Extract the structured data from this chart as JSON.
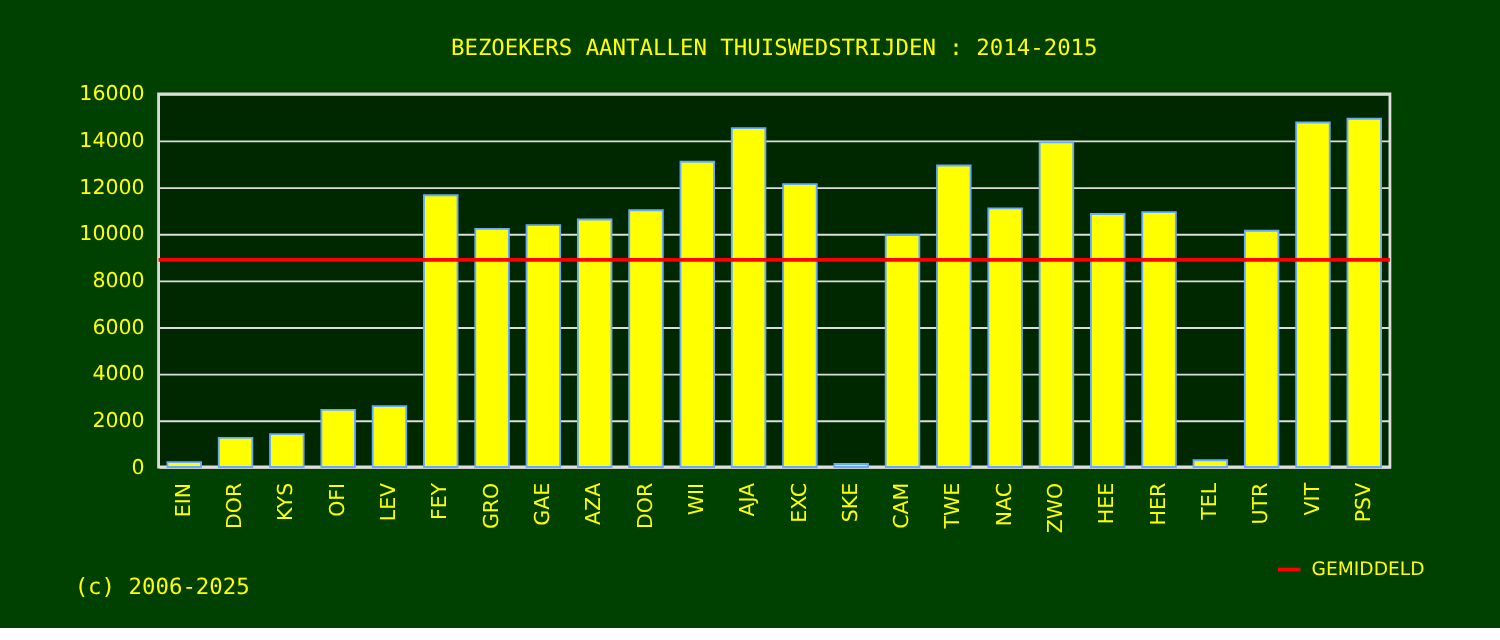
{
  "chart_data": {
    "type": "bar",
    "title": "BEZOEKERS AANTALLEN THUISWEDSTRIJDEN : 2014-2015",
    "categories": [
      "EIN",
      "DOR",
      "KYS",
      "OFI",
      "LEV",
      "FEY",
      "GRO",
      "GAE",
      "AZA",
      "DOR",
      "WII",
      "AJA",
      "EXC",
      "SKE",
      "CAM",
      "TWE",
      "NAC",
      "ZWO",
      "HEE",
      "HER",
      "TEL",
      "UTR",
      "VIT",
      "PSV"
    ],
    "values": [
      210,
      1250,
      1410,
      2450,
      2610,
      11650,
      10210,
      10370,
      10610,
      11010,
      13090,
      14530,
      12130,
      130,
      9950,
      12930,
      11090,
      13920,
      10850,
      10930,
      290,
      10130,
      14770,
      14930
    ],
    "color": "#ffff00",
    "ylim": [
      0,
      16000
    ],
    "yticks": [
      0,
      2000,
      4000,
      6000,
      8000,
      10000,
      12000,
      14000,
      16000
    ],
    "grid": "y",
    "ref_lines": [
      {
        "axis": "y",
        "value": 8880,
        "label": "GEMIDDELD",
        "color": "#ff0000"
      }
    ],
    "legend": "bottom right",
    "annotations": [
      "(c) 2006-2025"
    ]
  }
}
